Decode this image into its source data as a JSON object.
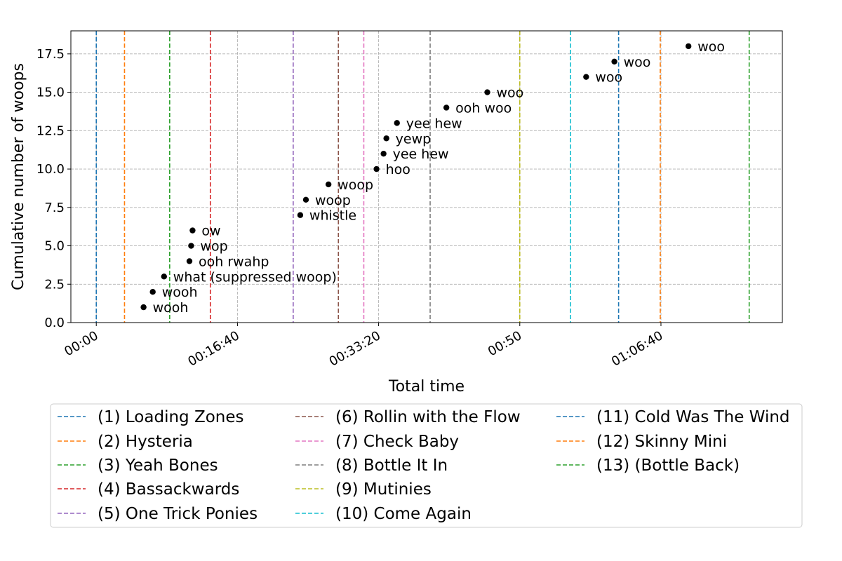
{
  "chart_data": {
    "type": "scatter",
    "title": "",
    "xlabel": "Total time",
    "ylabel": "Cumulative number of woops",
    "x_units": "seconds",
    "xlim": [
      -180,
      4860
    ],
    "ylim": [
      0,
      19
    ],
    "grid": true,
    "x_ticks": [
      {
        "value": 0,
        "label": "00:00"
      },
      {
        "value": 1000,
        "label": "00:16:40"
      },
      {
        "value": 2000,
        "label": "00:33:20"
      },
      {
        "value": 3000,
        "label": "00:50"
      },
      {
        "value": 4000,
        "label": "01:06:40"
      }
    ],
    "y_ticks": [
      {
        "value": 0,
        "label": "0.0"
      },
      {
        "value": 2.5,
        "label": "2.5"
      },
      {
        "value": 5,
        "label": "5.0"
      },
      {
        "value": 7.5,
        "label": "7.5"
      },
      {
        "value": 10,
        "label": "10.0"
      },
      {
        "value": 12.5,
        "label": "12.5"
      },
      {
        "value": 15,
        "label": "15.0"
      },
      {
        "value": 17.5,
        "label": "17.5"
      }
    ],
    "points": [
      {
        "x": 335,
        "y": 1,
        "label": "wooh"
      },
      {
        "x": 400,
        "y": 2,
        "label": "wooh"
      },
      {
        "x": 480,
        "y": 3,
        "label": "what (suppressed woop)"
      },
      {
        "x": 660,
        "y": 4,
        "label": "ooh rwahp"
      },
      {
        "x": 672,
        "y": 5,
        "label": "wop"
      },
      {
        "x": 682,
        "y": 6,
        "label": "ow"
      },
      {
        "x": 1445,
        "y": 7,
        "label": "whistle"
      },
      {
        "x": 1485,
        "y": 8,
        "label": "woop"
      },
      {
        "x": 1645,
        "y": 9,
        "label": "woop"
      },
      {
        "x": 1985,
        "y": 10,
        "label": "hoo"
      },
      {
        "x": 2035,
        "y": 11,
        "label": "yee hew"
      },
      {
        "x": 2055,
        "y": 12,
        "label": "yewp"
      },
      {
        "x": 2130,
        "y": 13,
        "label": "yee hew"
      },
      {
        "x": 2480,
        "y": 14,
        "label": "ooh woo"
      },
      {
        "x": 2770,
        "y": 15,
        "label": "woo"
      },
      {
        "x": 3470,
        "y": 16,
        "label": "woo"
      },
      {
        "x": 3670,
        "y": 17,
        "label": "woo"
      },
      {
        "x": 4195,
        "y": 18,
        "label": "woo"
      }
    ],
    "track_lines": [
      {
        "x": 0,
        "label": "(1) Loading Zones",
        "color": "#1f77b4"
      },
      {
        "x": 200,
        "label": "(2) Hysteria",
        "color": "#ff7f0e"
      },
      {
        "x": 520,
        "label": "(3) Yeah Bones",
        "color": "#2ca02c"
      },
      {
        "x": 808,
        "label": "(4) Bassackwards",
        "color": "#d62728"
      },
      {
        "x": 1395,
        "label": "(5) One Trick Ponies",
        "color": "#9467bd"
      },
      {
        "x": 1715,
        "label": "(6) Rollin with the Flow",
        "color": "#8c564b"
      },
      {
        "x": 1895,
        "label": "(7) Check Baby",
        "color": "#e377c2"
      },
      {
        "x": 2365,
        "label": "(8) Bottle It In",
        "color": "#7f7f7f"
      },
      {
        "x": 3000,
        "label": "(9) Mutinies",
        "color": "#bcbd22"
      },
      {
        "x": 3360,
        "label": "(10) Come Again",
        "color": "#17becf"
      },
      {
        "x": 3700,
        "label": "(11) Cold Was The Wind",
        "color": "#1f77b4"
      },
      {
        "x": 3995,
        "label": "(12) Skinny Mini",
        "color": "#ff7f0e"
      },
      {
        "x": 4625,
        "label": "(13) (Bottle Back)",
        "color": "#2ca02c"
      }
    ],
    "legend": {
      "placement": "below",
      "columns": 3
    }
  }
}
